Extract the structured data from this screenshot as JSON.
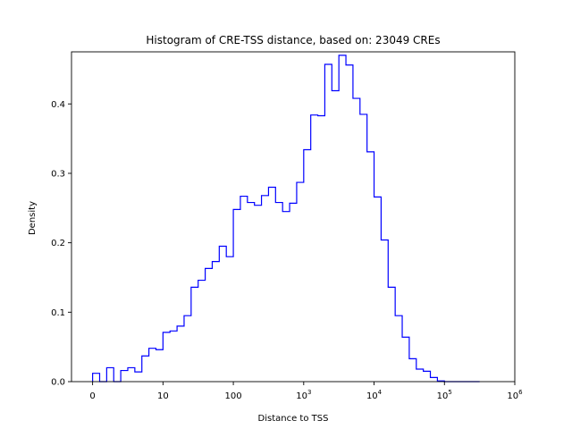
{
  "chart_data": {
    "type": "bar",
    "title": "Histogram of CRE-TSS distance, based on: 23049 CREs",
    "xlabel": "Distance to TSS",
    "ylabel": "Density",
    "x_scale": "symlog",
    "xlim": [
      -0.3,
      6.0
    ],
    "ylim": [
      0,
      0.475
    ],
    "x_ticks": [
      {
        "value": 0,
        "base": "0",
        "exp": ""
      },
      {
        "value": 1,
        "base": "10",
        "exp": ""
      },
      {
        "value": 2,
        "base": "100",
        "exp": ""
      },
      {
        "value": 3,
        "base": "10",
        "exp": "3"
      },
      {
        "value": 4,
        "base": "10",
        "exp": "4"
      },
      {
        "value": 5,
        "base": "10",
        "exp": "5"
      },
      {
        "value": 6,
        "base": "10",
        "exp": "6"
      }
    ],
    "y_ticks": [
      "0.0",
      "0.1",
      "0.2",
      "0.3",
      "0.4"
    ],
    "grid": false,
    "legend": "none",
    "color": "#0000ff",
    "series": [
      {
        "bin_edges": [
          0,
          0.1,
          0.2,
          0.3,
          0.4,
          0.5,
          0.6,
          0.7,
          0.8,
          0.9,
          1.0,
          1.1,
          1.2,
          1.3,
          1.4,
          1.5,
          1.6,
          1.7,
          1.8,
          1.9,
          2.0,
          2.1,
          2.2,
          2.3,
          2.4,
          2.5,
          2.6,
          2.7,
          2.8,
          2.9,
          3.0,
          3.1,
          3.2,
          3.3,
          3.4,
          3.5,
          3.6,
          3.7,
          3.8,
          3.9,
          4.0,
          4.1,
          4.2,
          4.3,
          4.4,
          4.5,
          4.6,
          4.7,
          4.8,
          4.9,
          5.0,
          5.1,
          5.2,
          5.3,
          5.4,
          5.5
        ],
        "values": [
          0.012,
          0.0,
          0.02,
          0.0,
          0.016,
          0.02,
          0.014,
          0.037,
          0.048,
          0.046,
          0.071,
          0.073,
          0.08,
          0.095,
          0.136,
          0.146,
          0.163,
          0.173,
          0.195,
          0.18,
          0.248,
          0.267,
          0.258,
          0.254,
          0.268,
          0.28,
          0.258,
          0.245,
          0.257,
          0.287,
          0.334,
          0.384,
          0.383,
          0.457,
          0.419,
          0.47,
          0.456,
          0.408,
          0.385,
          0.331,
          0.266,
          0.204,
          0.136,
          0.095,
          0.064,
          0.033,
          0.018,
          0.015,
          0.006,
          0.001,
          0.0,
          0.0,
          0.0,
          0.0,
          0.0
        ]
      }
    ]
  }
}
